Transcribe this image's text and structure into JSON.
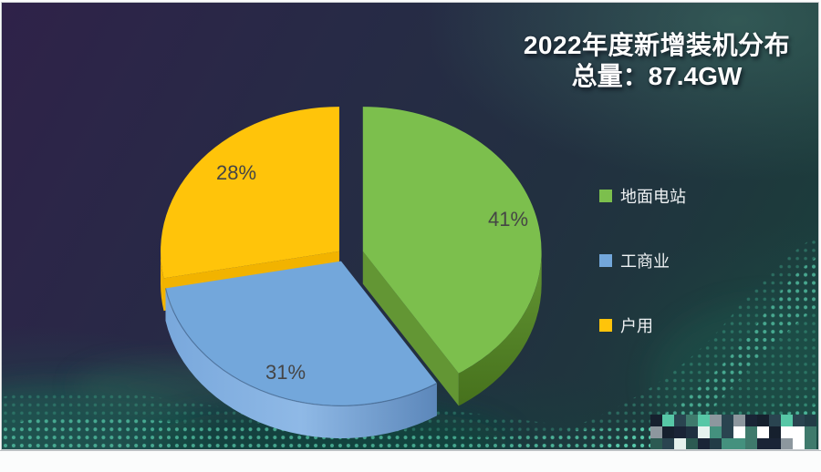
{
  "chart_data": {
    "type": "pie",
    "title": "2022年度新增装机分布",
    "subtitle": "总量：87.4GW",
    "total": "87.4GW",
    "unit": "GW",
    "legend_position": "right",
    "data_labels": "percent-on-slice",
    "slices": [
      {
        "label": "地面电站",
        "percent": 41,
        "data_label": "41%",
        "color": "#7CBF4D",
        "side_light": "#639634",
        "side_dark": "#46711C"
      },
      {
        "label": "工商业",
        "percent": 31,
        "data_label": "31%",
        "color": "#73A7DB",
        "side_light": "#8FB9E6",
        "side_dark": "#5C87BA"
      },
      {
        "label": "户用",
        "percent": 28,
        "data_label": "28%",
        "color": "#FFC40A",
        "side_light": "#F2B300",
        "side_dark": "#E0A500"
      }
    ]
  },
  "watermark": {
    "type": "pixelated-mosaic"
  }
}
